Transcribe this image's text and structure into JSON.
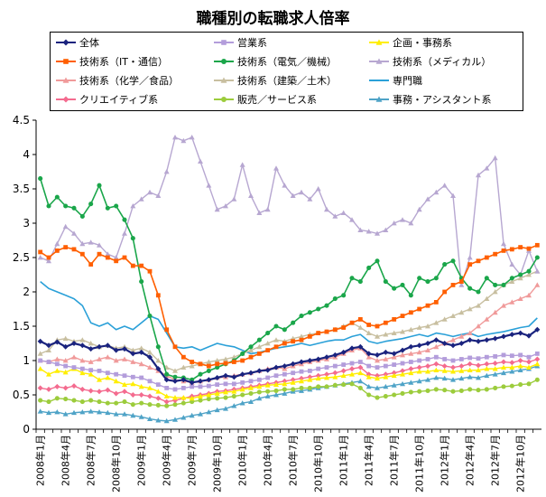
{
  "chart_data": {
    "type": "line",
    "title": "職種別の転職求人倍率",
    "xlabel": "",
    "ylabel": "",
    "ylim": [
      0,
      4.5
    ],
    "yticks": [
      "0",
      "0.5",
      "1",
      "1.5",
      "2",
      "2.5",
      "3",
      "3.5",
      "4",
      "4.5"
    ],
    "grid": false,
    "legend_position": "top",
    "categories": [
      "2008年1月",
      "2008年2月",
      "2008年3月",
      "2008年4月",
      "2008年5月",
      "2008年6月",
      "2008年7月",
      "2008年8月",
      "2008年9月",
      "2008年10月",
      "2008年11月",
      "2008年12月",
      "2009年1月",
      "2009年2月",
      "2009年3月",
      "2009年4月",
      "2009年5月",
      "2009年6月",
      "2009年7月",
      "2009年8月",
      "2009年9月",
      "2009年10月",
      "2009年11月",
      "2009年12月",
      "2010年1月",
      "2010年2月",
      "2010年3月",
      "2010年4月",
      "2010年5月",
      "2010年6月",
      "2010年7月",
      "2010年8月",
      "2010年9月",
      "2010年10月",
      "2010年11月",
      "2010年12月",
      "2011年1月",
      "2011年2月",
      "2011年3月",
      "2011年4月",
      "2011年5月",
      "2011年6月",
      "2011年7月",
      "2011年8月",
      "2011年9月",
      "2011年10月",
      "2011年11月",
      "2011年12月",
      "2012年1月",
      "2012年2月",
      "2012年3月",
      "2012年4月",
      "2012年5月",
      "2012年6月",
      "2012年7月",
      "2012年8月",
      "2012年9月",
      "2012年10月",
      "2012年11月",
      "2012年12月"
    ],
    "tick_labels": [
      "2008年1月",
      "2008年4月",
      "2008年7月",
      "2008年10月",
      "2009年1月",
      "2009年4月",
      "2009年7月",
      "2009年10月",
      "2010年1月",
      "2010年4月",
      "2010年7月",
      "2010年10月",
      "2011年1月",
      "2011年4月",
      "2011年7月",
      "2011年10月",
      "2012年1月",
      "2012年4月",
      "2012年7月",
      "2012年10月"
    ],
    "series": [
      {
        "name": "全体",
        "color": "#1a237e",
        "marker": "diamond",
        "width": 2.2,
        "values": [
          1.28,
          1.22,
          1.27,
          1.2,
          1.25,
          1.22,
          1.17,
          1.2,
          1.22,
          1.15,
          1.17,
          1.1,
          1.12,
          1.05,
          0.88,
          0.72,
          0.7,
          0.72,
          0.68,
          0.7,
          0.72,
          0.75,
          0.78,
          0.76,
          0.8,
          0.82,
          0.85,
          0.86,
          0.9,
          0.92,
          0.95,
          0.98,
          1.0,
          1.02,
          1.05,
          1.08,
          1.12,
          1.18,
          1.2,
          1.1,
          1.08,
          1.12,
          1.1,
          1.15,
          1.2,
          1.22,
          1.25,
          1.3,
          1.25,
          1.22,
          1.25,
          1.3,
          1.28,
          1.3,
          1.32,
          1.35,
          1.38,
          1.4,
          1.36,
          1.45
        ]
      },
      {
        "name": "営業系",
        "color": "#b39ddb",
        "marker": "square",
        "width": 1.4,
        "values": [
          1.0,
          0.98,
          0.95,
          0.92,
          0.9,
          0.88,
          0.86,
          0.85,
          0.82,
          0.8,
          0.78,
          0.76,
          0.75,
          0.7,
          0.65,
          0.6,
          0.58,
          0.6,
          0.62,
          0.62,
          0.63,
          0.65,
          0.66,
          0.66,
          0.68,
          0.7,
          0.72,
          0.75,
          0.78,
          0.8,
          0.82,
          0.84,
          0.85,
          0.88,
          0.9,
          0.92,
          0.94,
          0.96,
          0.98,
          0.92,
          0.9,
          0.92,
          0.94,
          0.96,
          0.98,
          1.0,
          1.02,
          1.05,
          1.02,
          1.0,
          1.02,
          1.04,
          1.03,
          1.05,
          1.06,
          1.08,
          1.07,
          1.08,
          1.05,
          1.1
        ]
      },
      {
        "name": "企画・事務系",
        "color": "#ffee00",
        "marker": "triangle",
        "width": 1.4,
        "values": [
          0.88,
          0.8,
          0.85,
          0.83,
          0.88,
          0.82,
          0.8,
          0.72,
          0.75,
          0.7,
          0.65,
          0.66,
          0.62,
          0.6,
          0.55,
          0.48,
          0.46,
          0.46,
          0.45,
          0.48,
          0.5,
          0.52,
          0.54,
          0.55,
          0.58,
          0.6,
          0.62,
          0.64,
          0.65,
          0.66,
          0.68,
          0.7,
          0.72,
          0.74,
          0.75,
          0.76,
          0.78,
          0.8,
          0.82,
          0.76,
          0.74,
          0.76,
          0.78,
          0.8,
          0.82,
          0.84,
          0.84,
          0.86,
          0.85,
          0.84,
          0.85,
          0.86,
          0.86,
          0.88,
          0.88,
          0.9,
          0.9,
          0.92,
          0.9,
          0.95
        ]
      },
      {
        "name": "技術系（IT・通信）",
        "color": "#ff5f00",
        "marker": "square",
        "width": 1.6,
        "values": [
          2.58,
          2.5,
          2.6,
          2.65,
          2.62,
          2.55,
          2.4,
          2.55,
          2.5,
          2.45,
          2.5,
          2.38,
          2.38,
          2.3,
          1.95,
          1.45,
          1.2,
          1.05,
          0.98,
          0.95,
          0.92,
          0.95,
          0.96,
          0.98,
          1.0,
          1.05,
          1.1,
          1.15,
          1.2,
          1.25,
          1.28,
          1.3,
          1.35,
          1.4,
          1.42,
          1.45,
          1.48,
          1.55,
          1.6,
          1.52,
          1.5,
          1.55,
          1.6,
          1.65,
          1.7,
          1.75,
          1.8,
          1.85,
          2.0,
          2.1,
          2.15,
          2.4,
          2.45,
          2.5,
          2.55,
          2.6,
          2.62,
          2.65,
          2.63,
          2.68
        ]
      },
      {
        "name": "技術系（電気／機械）",
        "color": "#1aa64a",
        "marker": "circle",
        "width": 1.6,
        "values": [
          3.65,
          3.25,
          3.38,
          3.25,
          3.22,
          3.1,
          3.28,
          3.55,
          3.22,
          3.25,
          3.05,
          2.78,
          2.15,
          1.65,
          1.2,
          0.8,
          0.76,
          0.75,
          0.72,
          0.8,
          0.85,
          0.9,
          0.95,
          1.0,
          1.1,
          1.2,
          1.3,
          1.4,
          1.5,
          1.45,
          1.55,
          1.65,
          1.7,
          1.75,
          1.8,
          1.9,
          1.95,
          2.2,
          2.15,
          2.35,
          2.45,
          2.15,
          2.05,
          2.1,
          1.95,
          2.2,
          2.15,
          2.2,
          2.4,
          2.45,
          2.2,
          2.05,
          2.0,
          2.2,
          2.1,
          2.1,
          2.2,
          2.25,
          2.3,
          2.5
        ]
      },
      {
        "name": "技術系（メディカル）",
        "color": "#b7a7d1",
        "marker": "triangle",
        "width": 1.4,
        "values": [
          2.5,
          2.45,
          2.7,
          2.95,
          2.85,
          2.7,
          2.72,
          2.68,
          2.55,
          2.5,
          2.85,
          3.25,
          3.35,
          3.45,
          3.4,
          3.75,
          4.25,
          4.2,
          4.25,
          3.9,
          3.55,
          3.2,
          3.25,
          3.35,
          3.85,
          3.4,
          3.15,
          3.2,
          3.8,
          3.55,
          3.4,
          3.45,
          3.35,
          3.5,
          3.2,
          3.1,
          3.15,
          3.05,
          2.9,
          2.88,
          2.85,
          2.9,
          3.0,
          3.05,
          3.0,
          3.2,
          3.35,
          3.45,
          3.55,
          3.4,
          2.1,
          2.5,
          3.7,
          3.8,
          3.95,
          2.7,
          2.4,
          2.25,
          2.6,
          2.3
        ]
      },
      {
        "name": "技術系（化学／食品）",
        "color": "#f09a9a",
        "marker": "triangle",
        "width": 1.4,
        "values": [
          1.0,
          0.98,
          1.02,
          1.0,
          1.05,
          1.0,
          0.98,
          1.02,
          1.05,
          1.0,
          1.02,
          0.98,
          0.95,
          0.9,
          0.85,
          0.78,
          0.72,
          0.7,
          0.68,
          0.7,
          0.72,
          0.75,
          0.76,
          0.78,
          0.8,
          0.82,
          0.85,
          0.88,
          0.9,
          0.88,
          0.92,
          0.95,
          0.98,
          1.0,
          1.02,
          1.05,
          1.1,
          1.15,
          1.18,
          1.05,
          1.0,
          1.02,
          1.05,
          1.08,
          1.1,
          1.12,
          1.15,
          1.2,
          1.25,
          1.3,
          1.35,
          1.4,
          1.5,
          1.6,
          1.7,
          1.8,
          1.85,
          1.9,
          1.95,
          2.1
        ]
      },
      {
        "name": "技術系（建築／土木）",
        "color": "#c8bfa0",
        "marker": "triangle",
        "width": 1.4,
        "values": [
          1.1,
          1.15,
          1.3,
          1.32,
          1.28,
          1.3,
          1.25,
          1.2,
          1.22,
          1.18,
          1.2,
          1.15,
          1.18,
          1.12,
          1.0,
          0.9,
          0.85,
          0.9,
          0.92,
          0.95,
          0.98,
          1.0,
          1.02,
          1.05,
          1.1,
          1.15,
          1.2,
          1.25,
          1.3,
          1.28,
          1.32,
          1.35,
          1.38,
          1.4,
          1.42,
          1.45,
          1.5,
          1.55,
          1.48,
          1.4,
          1.35,
          1.38,
          1.4,
          1.42,
          1.45,
          1.48,
          1.5,
          1.55,
          1.6,
          1.65,
          1.7,
          1.75,
          1.8,
          1.9,
          2.0,
          2.1,
          2.15,
          2.2,
          2.25,
          2.3
        ]
      },
      {
        "name": "専門職",
        "color": "#2aa0d8",
        "marker": "none",
        "width": 1.6,
        "values": [
          2.15,
          2.05,
          2.0,
          1.95,
          1.9,
          1.8,
          1.55,
          1.5,
          1.55,
          1.45,
          1.5,
          1.45,
          1.55,
          1.65,
          1.6,
          1.4,
          1.2,
          1.18,
          1.2,
          1.15,
          1.2,
          1.25,
          1.22,
          1.2,
          1.15,
          1.1,
          1.12,
          1.15,
          1.18,
          1.2,
          1.22,
          1.25,
          1.22,
          1.25,
          1.28,
          1.3,
          1.3,
          1.35,
          1.38,
          1.28,
          1.25,
          1.28,
          1.3,
          1.32,
          1.35,
          1.38,
          1.35,
          1.4,
          1.38,
          1.35,
          1.38,
          1.4,
          1.35,
          1.38,
          1.4,
          1.42,
          1.45,
          1.48,
          1.5,
          1.62
        ]
      },
      {
        "name": "クリエイティブ系",
        "color": "#f46b8f",
        "marker": "diamond",
        "width": 1.4,
        "values": [
          0.6,
          0.58,
          0.62,
          0.6,
          0.63,
          0.58,
          0.56,
          0.55,
          0.57,
          0.52,
          0.55,
          0.5,
          0.5,
          0.48,
          0.45,
          0.4,
          0.42,
          0.45,
          0.48,
          0.5,
          0.52,
          0.55,
          0.56,
          0.58,
          0.6,
          0.62,
          0.64,
          0.66,
          0.68,
          0.7,
          0.72,
          0.74,
          0.76,
          0.78,
          0.8,
          0.82,
          0.85,
          0.88,
          0.9,
          0.8,
          0.78,
          0.8,
          0.82,
          0.85,
          0.88,
          0.9,
          0.92,
          0.95,
          0.92,
          0.9,
          0.92,
          0.95,
          0.93,
          0.95,
          0.96,
          0.98,
          0.97,
          1.0,
          0.98,
          1.02
        ]
      },
      {
        "name": "販売／サービス系",
        "color": "#9ccc3c",
        "marker": "circle",
        "width": 1.4,
        "values": [
          0.42,
          0.4,
          0.45,
          0.44,
          0.42,
          0.4,
          0.42,
          0.4,
          0.38,
          0.38,
          0.4,
          0.36,
          0.38,
          0.36,
          0.35,
          0.34,
          0.36,
          0.38,
          0.4,
          0.42,
          0.44,
          0.45,
          0.46,
          0.48,
          0.5,
          0.52,
          0.54,
          0.55,
          0.56,
          0.58,
          0.58,
          0.6,
          0.6,
          0.62,
          0.62,
          0.64,
          0.65,
          0.66,
          0.6,
          0.5,
          0.46,
          0.48,
          0.5,
          0.52,
          0.54,
          0.55,
          0.56,
          0.58,
          0.57,
          0.55,
          0.56,
          0.58,
          0.57,
          0.58,
          0.6,
          0.62,
          0.63,
          0.65,
          0.66,
          0.72
        ]
      },
      {
        "name": "事務・アシスタント系",
        "color": "#4fa3c7",
        "marker": "triangle",
        "width": 1.4,
        "values": [
          0.26,
          0.24,
          0.25,
          0.22,
          0.24,
          0.25,
          0.26,
          0.25,
          0.24,
          0.22,
          0.22,
          0.2,
          0.18,
          0.15,
          0.13,
          0.12,
          0.14,
          0.17,
          0.2,
          0.22,
          0.25,
          0.28,
          0.3,
          0.34,
          0.38,
          0.4,
          0.45,
          0.48,
          0.5,
          0.52,
          0.55,
          0.56,
          0.58,
          0.6,
          0.62,
          0.64,
          0.66,
          0.68,
          0.7,
          0.62,
          0.6,
          0.62,
          0.64,
          0.66,
          0.68,
          0.7,
          0.72,
          0.75,
          0.74,
          0.72,
          0.74,
          0.76,
          0.75,
          0.78,
          0.8,
          0.82,
          0.84,
          0.86,
          0.88,
          0.92
        ]
      }
    ]
  }
}
